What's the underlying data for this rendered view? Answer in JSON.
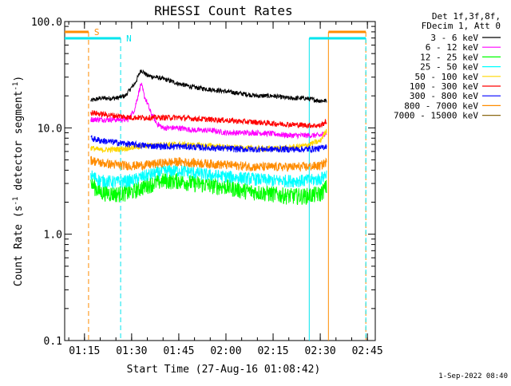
{
  "chart_data": {
    "type": "line",
    "title": "RHESSI Count Rates",
    "xlabel": "Start Time (27-Aug-16 01:08:42)",
    "ylabel_main": "Count Rate (s",
    "ylabel_sup1": "-1",
    "ylabel_mid": " detector segment",
    "ylabel_sup2": "-1",
    "ylabel_end": ")",
    "x_unit": "minutes of day",
    "xlim": [
      68.7,
      167.5
    ],
    "ylim": [
      0.1,
      100.0
    ],
    "y_scale": "log",
    "x_ticks": [
      {
        "value": 75,
        "label": "01:15"
      },
      {
        "value": 90,
        "label": "01:30"
      },
      {
        "value": 105,
        "label": "01:45"
      },
      {
        "value": 120,
        "label": "02:00"
      },
      {
        "value": 135,
        "label": "02:15"
      },
      {
        "value": 150,
        "label": "02:30"
      },
      {
        "value": 165,
        "label": "02:45"
      }
    ],
    "y_ticks": [
      {
        "value": 100.0,
        "label": "100.0"
      },
      {
        "value": 10.0,
        "label": "10.0"
      },
      {
        "value": 1.0,
        "label": "1.0"
      },
      {
        "value": 0.1,
        "label": "0.1"
      }
    ],
    "legend_header": [
      "Det 1f,3f,8f,",
      "FDecim 1, Att 0"
    ],
    "series": [
      {
        "name": "3 - 6 keV",
        "color": "#000000",
        "x": [
          77,
          80,
          85,
          88,
          91,
          92,
          93,
          94,
          95,
          100,
          105,
          110,
          115,
          120,
          125,
          130,
          135,
          140,
          145,
          150,
          152
        ],
        "y": [
          18,
          19,
          19,
          20,
          26,
          30,
          35,
          33,
          31,
          29,
          26,
          24,
          23,
          22,
          21,
          20,
          20,
          19,
          19,
          18,
          18
        ]
      },
      {
        "name": "6 - 12 keV",
        "color": "#ff00ff",
        "x": [
          77,
          80,
          85,
          89,
          91,
          92,
          93,
          94,
          96,
          98,
          100,
          105,
          110,
          115,
          120,
          125,
          130,
          135,
          140,
          145,
          150,
          152
        ],
        "y": [
          12,
          12,
          12,
          12,
          15,
          20,
          26,
          20,
          14,
          11,
          10,
          10,
          9.5,
          9.5,
          9,
          9,
          9,
          8.8,
          8.5,
          8.5,
          8.5,
          9
        ]
      },
      {
        "name": "12 - 25 keV",
        "color": "#00ff00",
        "x": [
          77,
          80,
          85,
          90,
          95,
          100,
          105,
          110,
          115,
          120,
          125,
          130,
          135,
          140,
          145,
          150,
          152
        ],
        "y": [
          3.0,
          2.5,
          2.4,
          2.5,
          2.9,
          3.2,
          3.2,
          3.0,
          2.9,
          2.8,
          2.6,
          2.5,
          2.4,
          2.3,
          2.3,
          2.4,
          2.8
        ]
      },
      {
        "name": "25 - 50 keV",
        "color": "#00ffff",
        "x": [
          77,
          80,
          85,
          90,
          95,
          100,
          105,
          110,
          115,
          120,
          125,
          130,
          135,
          140,
          145,
          150,
          152
        ],
        "y": [
          3.6,
          3.2,
          3.1,
          3.2,
          3.6,
          3.9,
          4.0,
          3.8,
          3.6,
          3.5,
          3.4,
          3.3,
          3.2,
          3.2,
          3.2,
          3.3,
          3.7
        ]
      },
      {
        "name": "50 - 100 keV",
        "color": "#ffd700",
        "x": [
          77,
          80,
          85,
          90,
          95,
          100,
          105,
          110,
          115,
          120,
          125,
          130,
          135,
          140,
          145,
          150,
          152
        ],
        "y": [
          6.5,
          6.2,
          6.3,
          6.5,
          6.8,
          7.0,
          7.0,
          6.9,
          6.8,
          6.6,
          6.5,
          6.4,
          6.4,
          6.5,
          6.8,
          7.5,
          9.5
        ]
      },
      {
        "name": "100 - 300 keV",
        "color": "#ff0000",
        "x": [
          77,
          80,
          85,
          90,
          95,
          100,
          105,
          110,
          115,
          120,
          125,
          130,
          135,
          140,
          145,
          150,
          152
        ],
        "y": [
          14,
          13.5,
          13,
          12.5,
          12.5,
          12.5,
          12.5,
          12.2,
          12,
          11.8,
          11.5,
          11.3,
          11,
          10.8,
          10.6,
          10.5,
          11.5
        ]
      },
      {
        "name": "300 - 800 keV",
        "color": "#0000ff",
        "x": [
          77,
          80,
          85,
          90,
          95,
          100,
          105,
          110,
          115,
          120,
          125,
          130,
          135,
          140,
          145,
          150,
          152
        ],
        "y": [
          8.0,
          7.6,
          7.3,
          7.0,
          6.8,
          6.7,
          6.7,
          6.6,
          6.5,
          6.4,
          6.3,
          6.3,
          6.3,
          6.3,
          6.3,
          6.4,
          6.8
        ]
      },
      {
        "name": "800 - 7000 keV",
        "color": "#ff8c00",
        "x": [
          77,
          80,
          85,
          90,
          95,
          100,
          105,
          110,
          115,
          120,
          125,
          130,
          135,
          140,
          145,
          150,
          152
        ],
        "y": [
          5.0,
          4.7,
          4.5,
          4.4,
          4.5,
          4.7,
          4.8,
          4.7,
          4.6,
          4.5,
          4.4,
          4.3,
          4.3,
          4.3,
          4.3,
          4.4,
          4.8
        ]
      },
      {
        "name": "7000 - 15000 keV",
        "color": "#8b6914",
        "x": [],
        "y": []
      }
    ],
    "attenuator_markers": [
      {
        "label": "S",
        "color": "#ff8c00",
        "bar_start": 68.7,
        "bar_end": 76.3,
        "dashed_at": [
          76.3,
          164.5
        ],
        "bar2_start": 152.6,
        "bar2_end": 164.5,
        "solid_at": [
          152.6
        ]
      },
      {
        "label": "N",
        "color": "#00e5ee",
        "bar_start": 68.7,
        "bar_end": 86.5,
        "dashed_at": [
          86.5,
          164.5
        ],
        "bar2_start": 146.5,
        "bar2_end": 164.5,
        "solid_at": [
          146.5
        ]
      }
    ],
    "grid": false,
    "legend_position": "right"
  },
  "footer": {
    "timestamp": "1-Sep-2022 08:40"
  }
}
